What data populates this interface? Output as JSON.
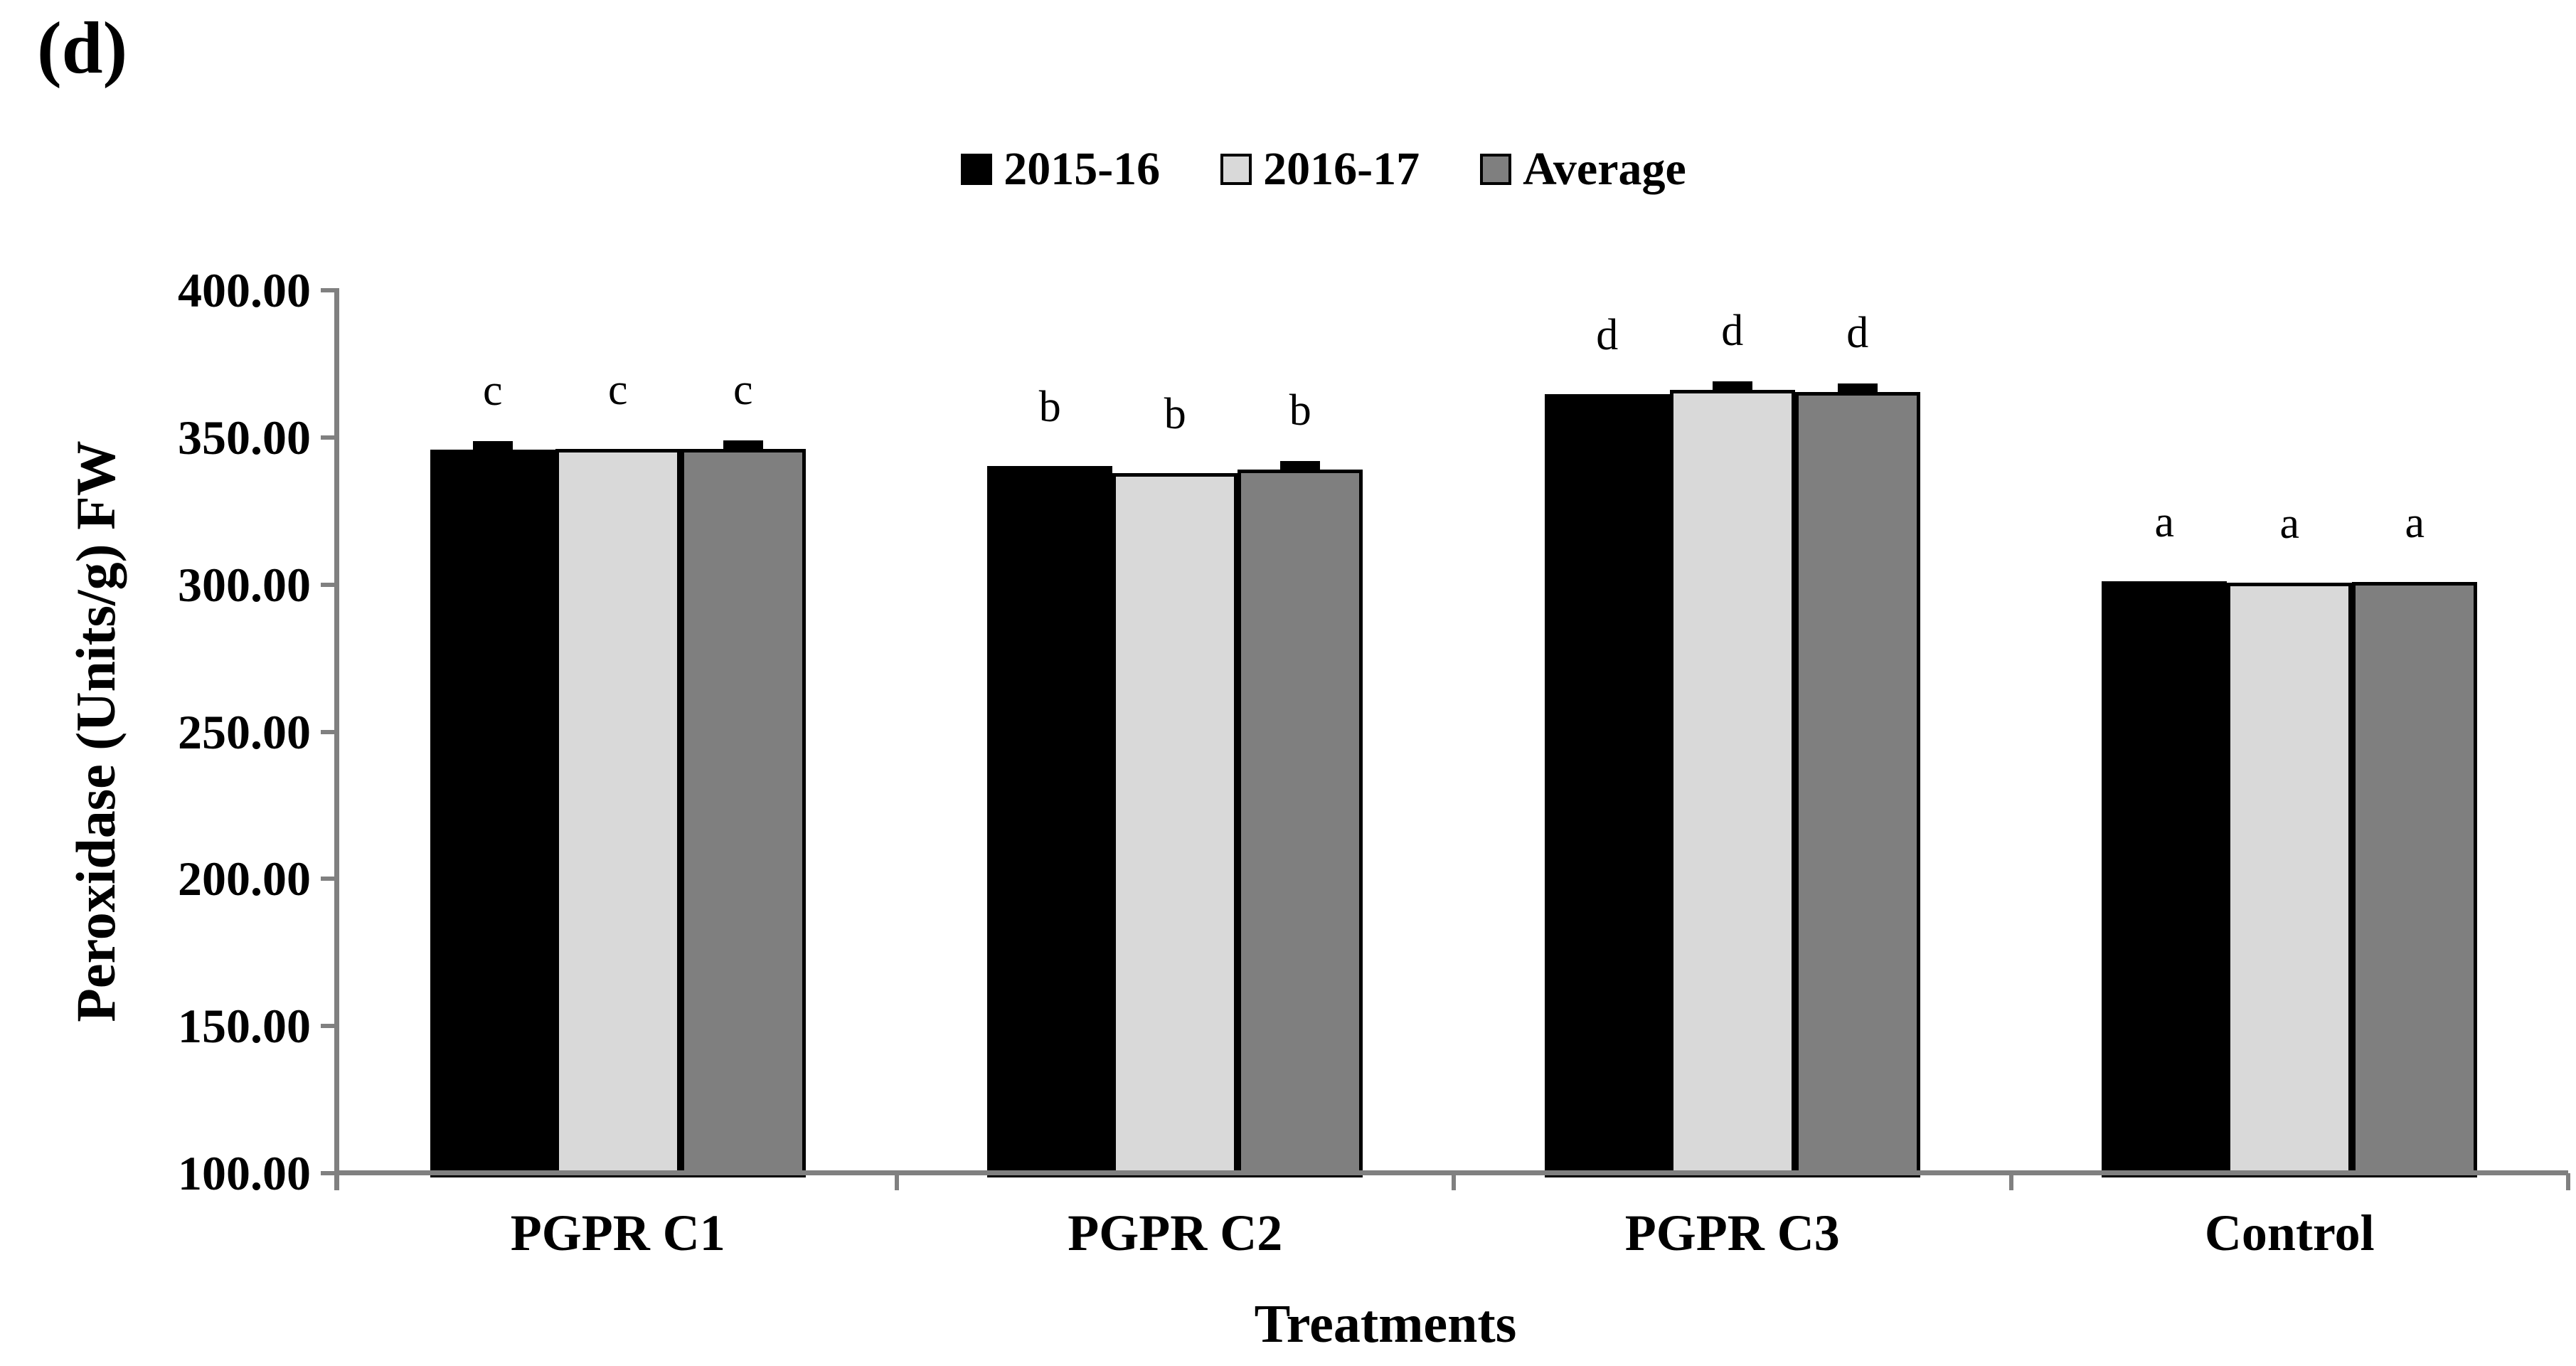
{
  "panel_label": "(d)",
  "chart_data": {
    "type": "bar",
    "title": "",
    "categories": [
      "PGPR C1",
      "PGPR C2",
      "PGPR C3",
      "Control"
    ],
    "series": [
      {
        "name": "2015-16",
        "color": "#000000",
        "values": [
          345.8,
          340.3,
          364.7,
          301.2
        ],
        "errors": [
          1.0,
          0,
          0,
          0
        ]
      },
      {
        "name": "2016-17",
        "color": "#d9d9d9",
        "values": [
          346.2,
          337.9,
          366.1,
          300.6
        ],
        "errors": [
          0,
          0,
          0.8,
          0
        ]
      },
      {
        "name": "Average",
        "color": "#7f7f7f",
        "values": [
          346.0,
          339.1,
          365.4,
          300.9
        ],
        "errors": [
          1.0,
          2.0,
          2.0,
          0
        ]
      }
    ],
    "sig_letters": [
      "c",
      "b",
      "d",
      "a"
    ],
    "xlabel": "Treatments",
    "ylabel": "Peroxidase (Units/g) FW",
    "ylim": [
      100,
      400
    ],
    "ytick_step": 50,
    "yticks": [
      "400.00",
      "350.00",
      "300.00",
      "250.00",
      "200.00",
      "150.00",
      "100.00"
    ],
    "legend_position": "top",
    "grid": false,
    "axis_color": "#808080",
    "bar_outline_color": "#000000"
  }
}
